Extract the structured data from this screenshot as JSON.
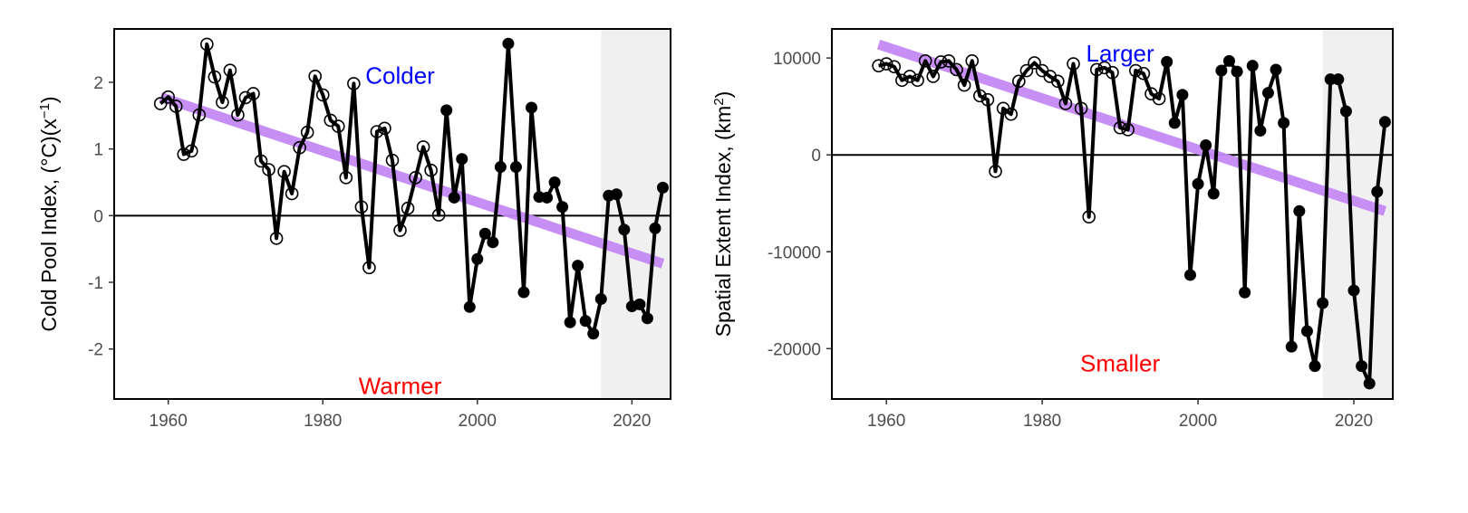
{
  "colors": {
    "line": "#000000",
    "trend": "#c58af5",
    "shade": "#f0f0f0",
    "colder": "#0000ff",
    "warmer": "#ff0000"
  },
  "chart_data": [
    {
      "type": "line",
      "ylabel_main": "Cold Pool Index, (°C)(x",
      "ylabel_sup": "−1",
      "ylabel_end": ")",
      "xlim": [
        1953,
        2025
      ],
      "ylim": [
        -2.75,
        2.8
      ],
      "xticks": [
        1960,
        1980,
        2000,
        2020
      ],
      "yticks": [
        -2,
        -1,
        0,
        1,
        2
      ],
      "zero_line": 0,
      "shaded_from": 2016,
      "open_marker_until": 1995,
      "upper_note": "Colder",
      "lower_note": "Warmer",
      "upper_note_x": 1990,
      "upper_note_y": 2.1,
      "lower_note_x": 1990,
      "lower_note_y": -2.55,
      "trend": [
        [
          1959,
          1.78
        ],
        [
          2024,
          -0.72
        ]
      ],
      "x": [
        1959,
        1960,
        1961,
        1962,
        1963,
        1964,
        1965,
        1966,
        1967,
        1968,
        1969,
        1970,
        1971,
        1972,
        1973,
        1974,
        1975,
        1976,
        1977,
        1978,
        1979,
        1980,
        1981,
        1982,
        1983,
        1984,
        1985,
        1986,
        1987,
        1988,
        1989,
        1990,
        1991,
        1992,
        1993,
        1994,
        1995,
        1996,
        1997,
        1998,
        1999,
        2000,
        2001,
        2002,
        2003,
        2004,
        2005,
        2006,
        2007,
        2008,
        2009,
        2010,
        2011,
        2012,
        2013,
        2014,
        2015,
        2016,
        2017,
        2018,
        2019,
        2020,
        2021,
        2022,
        2023,
        2024
      ],
      "y": [
        1.68,
        1.78,
        1.64,
        0.92,
        0.97,
        1.51,
        2.57,
        2.08,
        1.7,
        2.18,
        1.51,
        1.77,
        1.83,
        0.82,
        0.69,
        -0.34,
        0.66,
        0.33,
        1.02,
        1.25,
        2.09,
        1.81,
        1.43,
        1.34,
        0.57,
        1.98,
        0.13,
        -0.78,
        1.26,
        1.31,
        0.83,
        -0.22,
        0.11,
        0.57,
        1.03,
        0.68,
        0.01,
        1.58,
        0.27,
        0.85,
        -1.37,
        -0.65,
        -0.27,
        -0.4,
        0.73,
        2.58,
        0.73,
        -1.15,
        1.62,
        0.28,
        0.27,
        0.5,
        0.13,
        -1.6,
        -0.75,
        -1.58,
        -1.77,
        -1.25,
        0.3,
        0.32,
        -0.21,
        -1.36,
        -1.33,
        -1.54,
        -0.19,
        0.42
      ]
    },
    {
      "type": "line",
      "ylabel_main": "Spatial Extent Index, (km",
      "ylabel_sup": "2",
      "ylabel_end": ")",
      "xlim": [
        1953,
        2025
      ],
      "ylim": [
        -25200,
        13000
      ],
      "xticks": [
        1960,
        1980,
        2000,
        2020
      ],
      "yticks": [
        -20000,
        -10000,
        0,
        10000
      ],
      "zero_line": 0,
      "shaded_from": 2016,
      "open_marker_until": 1995,
      "upper_note": "Larger",
      "lower_note": "Smaller",
      "upper_note_x": 1990,
      "upper_note_y": 10500,
      "lower_note_x": 1990,
      "lower_note_y": -21500,
      "trend": [
        [
          1959,
          11400
        ],
        [
          2024,
          -5800
        ]
      ],
      "x": [
        1959,
        1960,
        1961,
        1962,
        1963,
        1964,
        1965,
        1966,
        1967,
        1968,
        1969,
        1970,
        1971,
        1972,
        1973,
        1974,
        1975,
        1976,
        1977,
        1978,
        1979,
        1980,
        1981,
        1982,
        1983,
        1984,
        1985,
        1986,
        1987,
        1988,
        1989,
        1990,
        1991,
        1992,
        1993,
        1994,
        1995,
        1996,
        1997,
        1998,
        1999,
        2000,
        2001,
        2002,
        2003,
        2004,
        2005,
        2006,
        2007,
        2008,
        2009,
        2010,
        2011,
        2012,
        2013,
        2014,
        2015,
        2016,
        2017,
        2018,
        2019,
        2020,
        2021,
        2022,
        2023,
        2024
      ],
      "y": [
        9200,
        9400,
        9100,
        7700,
        8100,
        7700,
        9700,
        8100,
        9600,
        9700,
        8800,
        7200,
        9700,
        6100,
        5700,
        -1700,
        4800,
        4200,
        7600,
        8700,
        9500,
        8700,
        8100,
        7600,
        5300,
        9400,
        4800,
        -6400,
        8800,
        9000,
        8500,
        2800,
        2600,
        8700,
        8400,
        6300,
        5800,
        9600,
        3300,
        6200,
        -12400,
        -3000,
        1000,
        -4000,
        8700,
        9700,
        8600,
        -14200,
        9200,
        2500,
        6400,
        8800,
        3300,
        -19800,
        -5800,
        -18200,
        -21800,
        -15300,
        7800,
        7800,
        4500,
        -14000,
        -21800,
        -23600,
        -3800,
        3400
      ]
    }
  ]
}
